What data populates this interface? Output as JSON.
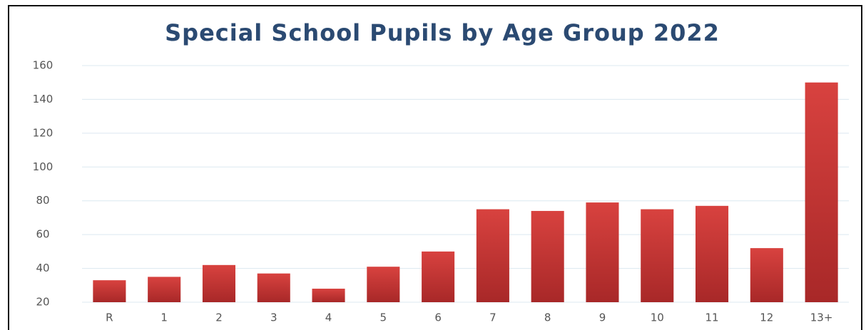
{
  "chart_data": {
    "type": "bar",
    "title": "Special School Pupils by Age Group 2022",
    "categories": [
      "R",
      "1",
      "2",
      "3",
      "4",
      "5",
      "6",
      "7",
      "8",
      "9",
      "10",
      "11",
      "12",
      "13+"
    ],
    "values": [
      33,
      35,
      42,
      37,
      28,
      41,
      50,
      75,
      74,
      79,
      75,
      77,
      52,
      150
    ],
    "color": "#c83333",
    "ylim": [
      20,
      160
    ],
    "yticks": [
      20,
      40,
      60,
      80,
      100,
      120,
      140,
      160
    ],
    "grid": true
  }
}
